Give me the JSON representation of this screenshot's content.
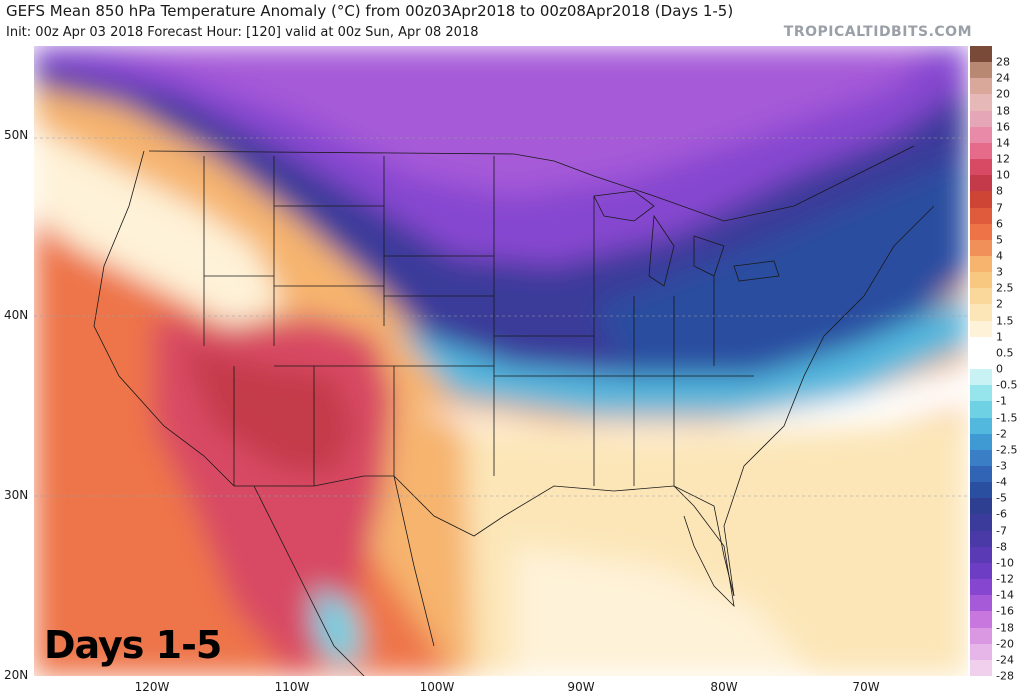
{
  "header": {
    "title": "GEFS Mean 850 hPa Temperature Anomaly (°C) from 00z03Apr2018 to 00z08Apr2018 (Days 1-5)",
    "subtitle": "Init: 00z Apr 03 2018   Forecast Hour: [120]   valid at 00z Sun, Apr 08 2018",
    "brand": "TROPICALTIDBITS.COM"
  },
  "overlay_label": "Days 1-5",
  "map": {
    "latitude_labels": [
      "50N",
      "40N",
      "30N",
      "20N"
    ],
    "longitude_labels": [
      "120W",
      "110W",
      "100W",
      "90W",
      "80W",
      "70W"
    ]
  },
  "colorbar": {
    "labels": [
      "28",
      "24",
      "20",
      "18",
      "16",
      "14",
      "12",
      "10",
      "8",
      "7",
      "6",
      "5",
      "4",
      "3",
      "2.5",
      "2",
      "1.5",
      "1",
      "0.5",
      "0",
      "-0.5",
      "-1",
      "-1.5",
      "-2",
      "-2.5",
      "-3",
      "-4",
      "-5",
      "-6",
      "-7",
      "-8",
      "-10",
      "-12",
      "-14",
      "-16",
      "-18",
      "-20",
      "-24",
      "-28"
    ],
    "colors": [
      "#7a4a38",
      "#b88872",
      "#d9a89a",
      "#e7b8b8",
      "#e5a6b8",
      "#e98aa8",
      "#e66a8a",
      "#d84a63",
      "#c43a4a",
      "#cf4535",
      "#e05a3c",
      "#ee7448",
      "#f29059",
      "#f6b46e",
      "#f8c880",
      "#fad79a",
      "#fce6b8",
      "#fef2d8",
      "#ffffff",
      "#ffffff",
      "#c9f2f4",
      "#96e4ec",
      "#6fd2e4",
      "#52b8de",
      "#3f9ad4",
      "#3a7ec6",
      "#3164b4",
      "#2a4ea0",
      "#2e3f92",
      "#3a3b9a",
      "#4a3aa8",
      "#5b3ab6",
      "#6d3ec4",
      "#8646d0",
      "#a65ad8",
      "#c877de",
      "#da98e2",
      "#e7b6e8",
      "#f1d0ee"
    ]
  }
}
